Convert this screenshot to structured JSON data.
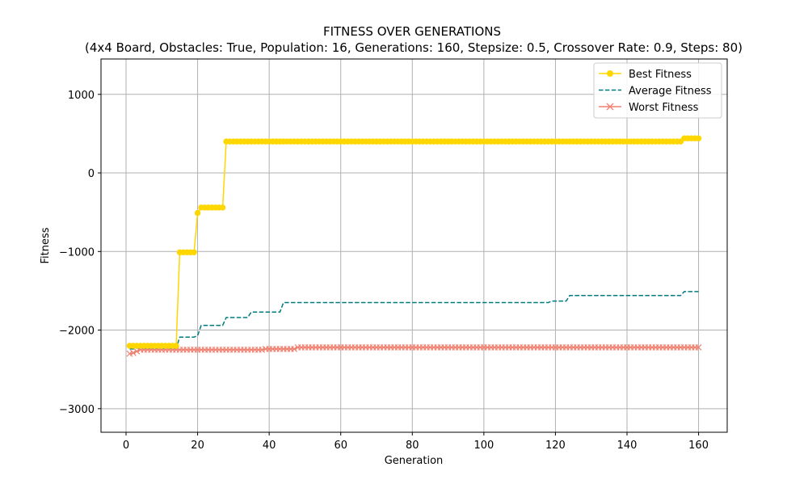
{
  "chart_data": {
    "type": "line",
    "title": "FITNESS OVER GENERATIONS",
    "subtitle": "(4x4 Board, Obstacles: True, Population: 16, Generations: 160, Stepsize: 0.5, Crossover Rate: 0.9, Steps: 80)",
    "xlabel": "Generation",
    "ylabel": "Fitness",
    "xlim": [
      -7,
      168
    ],
    "ylim": [
      -3300,
      1450
    ],
    "xticks": [
      0,
      20,
      40,
      60,
      80,
      100,
      120,
      140,
      160
    ],
    "yticks": [
      -3000,
      -2000,
      -1000,
      0,
      1000
    ],
    "xtick_labels": [
      "0",
      "20",
      "40",
      "60",
      "80",
      "100",
      "120",
      "140",
      "160"
    ],
    "ytick_labels": [
      "−3000",
      "−2000",
      "−1000",
      "0",
      "1000"
    ],
    "grid": true,
    "legend_position": "top-right",
    "x_range": [
      1,
      160
    ],
    "series": [
      {
        "name": "Best Fitness",
        "color": "#FFD700",
        "linestyle": "solid",
        "marker": "circle",
        "steps": [
          {
            "from": 1,
            "to": 14,
            "value": -2200
          },
          {
            "from": 15,
            "to": 19,
            "value": -1010
          },
          {
            "from": 20,
            "to": 20,
            "value": -510
          },
          {
            "from": 21,
            "to": 27,
            "value": -440
          },
          {
            "from": 28,
            "to": 155,
            "value": 400
          },
          {
            "from": 156,
            "to": 160,
            "value": 440
          }
        ]
      },
      {
        "name": "Average Fitness",
        "color": "#007B7F",
        "linestyle": "dashed",
        "marker": "none",
        "steps": [
          {
            "from": 1,
            "to": 2,
            "value": -2240
          },
          {
            "from": 3,
            "to": 14,
            "value": -2230
          },
          {
            "from": 15,
            "to": 19,
            "value": -2090
          },
          {
            "from": 20,
            "to": 20,
            "value": -2070
          },
          {
            "from": 21,
            "to": 27,
            "value": -1940
          },
          {
            "from": 28,
            "to": 34,
            "value": -1840
          },
          {
            "from": 35,
            "to": 43,
            "value": -1770
          },
          {
            "from": 44,
            "to": 118,
            "value": -1650
          },
          {
            "from": 119,
            "to": 123,
            "value": -1630
          },
          {
            "from": 124,
            "to": 155,
            "value": -1560
          },
          {
            "from": 156,
            "to": 160,
            "value": -1510
          }
        ]
      },
      {
        "name": "Worst Fitness",
        "color": "#F08070",
        "linestyle": "solid",
        "marker": "x",
        "steps": [
          {
            "from": 1,
            "to": 1,
            "value": -2300
          },
          {
            "from": 2,
            "to": 2,
            "value": -2290
          },
          {
            "from": 3,
            "to": 3,
            "value": -2270
          },
          {
            "from": 4,
            "to": 38,
            "value": -2250
          },
          {
            "from": 39,
            "to": 47,
            "value": -2240
          },
          {
            "from": 48,
            "to": 160,
            "value": -2220
          }
        ]
      }
    ]
  }
}
